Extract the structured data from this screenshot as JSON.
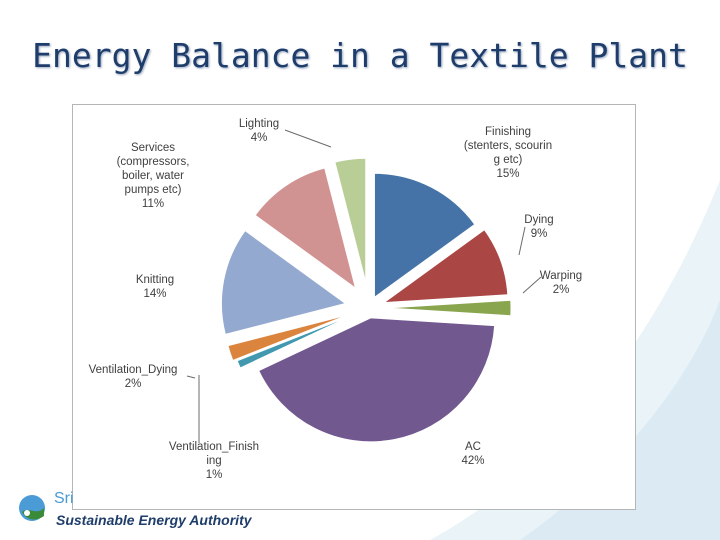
{
  "slide": {
    "title": "Energy Balance in a Textile Plant"
  },
  "footer": {
    "org_short": "Sri",
    "org_name": "Sustainable Energy Authority"
  },
  "chart_data": {
    "type": "pie",
    "title": "",
    "slices": [
      {
        "key": "finishing",
        "label_lines": [
          "Finishing",
          "(stenters, scourin",
          "g etc)"
        ],
        "percent_label": "15%",
        "value": 15,
        "color": "#4572a7"
      },
      {
        "key": "dying",
        "label_lines": [
          "Dying"
        ],
        "percent_label": "9%",
        "value": 9,
        "color": "#aa4643"
      },
      {
        "key": "warping",
        "label_lines": [
          "Warping"
        ],
        "percent_label": "2%",
        "value": 2,
        "color": "#89a54e"
      },
      {
        "key": "ac",
        "label_lines": [
          "AC"
        ],
        "percent_label": "42%",
        "value": 42,
        "color": "#71588f"
      },
      {
        "key": "ventilation-finishing",
        "label_lines": [
          "Ventilation_Finish",
          "ing"
        ],
        "percent_label": "1%",
        "value": 1,
        "color": "#4198af"
      },
      {
        "key": "ventilation-dying",
        "label_lines": [
          "Ventilation_Dying"
        ],
        "percent_label": "2%",
        "value": 2,
        "color": "#db843d"
      },
      {
        "key": "knitting",
        "label_lines": [
          "Knitting"
        ],
        "percent_label": "14%",
        "value": 14,
        "color": "#93a9cf"
      },
      {
        "key": "services",
        "label_lines": [
          "Services",
          "(compressors,",
          "boiler, water",
          "pumps etc)"
        ],
        "percent_label": "11%",
        "value": 11,
        "color": "#d19392"
      },
      {
        "key": "lighting",
        "label_lines": [
          "Lighting"
        ],
        "percent_label": "4%",
        "value": 4,
        "color": "#b9cd96"
      }
    ]
  }
}
